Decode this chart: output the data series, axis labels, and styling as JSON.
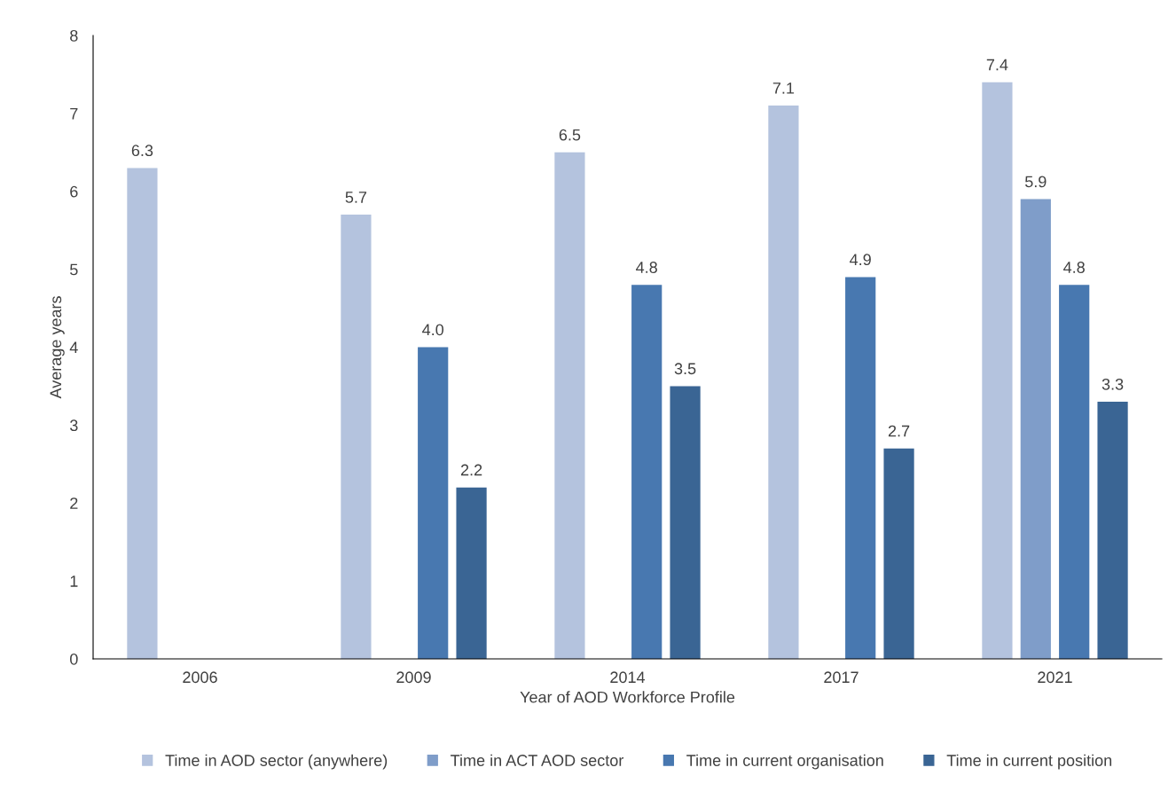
{
  "chart_data": {
    "type": "bar",
    "xlabel": "Year of AOD Workforce Profile",
    "ylabel": "Average years",
    "categories": [
      "2006",
      "2009",
      "2014",
      "2017",
      "2021"
    ],
    "series": [
      {
        "name": "Time in AOD sector (anywhere)",
        "color": "#b4c3de",
        "values": [
          6.3,
          5.7,
          6.5,
          7.1,
          7.4
        ],
        "value_labels": [
          "6.3",
          "5.7",
          "6.5",
          "7.1",
          "7.4"
        ]
      },
      {
        "name": "Time in ACT AOD sector",
        "color": "#7f9dc9",
        "values": [
          null,
          null,
          null,
          null,
          5.9
        ],
        "value_labels": [
          null,
          null,
          null,
          null,
          "5.9"
        ]
      },
      {
        "name": "Time in current organisation",
        "color": "#4878b0",
        "values": [
          null,
          4.0,
          4.8,
          4.9,
          4.8
        ],
        "value_labels": [
          null,
          "4.0",
          "4.8",
          "4.9",
          "4.8"
        ]
      },
      {
        "name": "Time in current position",
        "color": "#3a6594",
        "values": [
          null,
          2.2,
          3.5,
          2.7,
          3.3
        ],
        "value_labels": [
          null,
          "2.2",
          "3.5",
          "2.7",
          "3.3"
        ]
      }
    ],
    "ylim": [
      0,
      8
    ],
    "yticks": [
      0,
      1,
      2,
      3,
      4,
      5,
      6,
      7,
      8
    ],
    "grid": false,
    "legend": "bottom"
  }
}
